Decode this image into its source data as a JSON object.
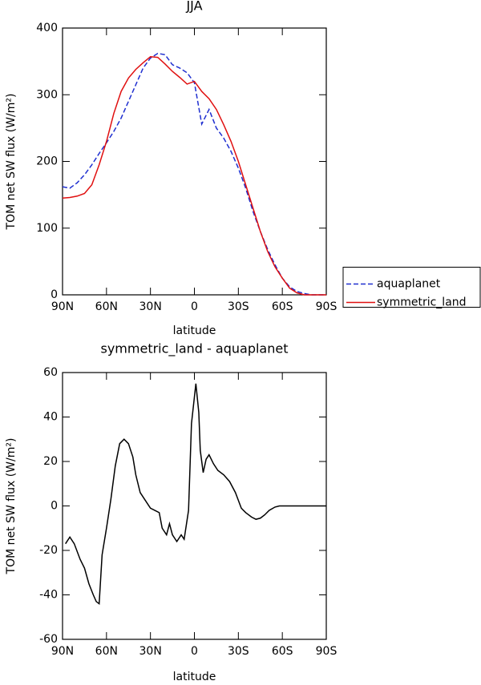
{
  "chart_data": [
    {
      "type": "line",
      "title": "JJA",
      "xlabel": "latitude",
      "ylabel": "TOM net SW flux (W/m²)",
      "x": [
        90,
        85,
        80,
        75,
        70,
        65,
        60,
        55,
        50,
        45,
        40,
        35,
        30,
        25,
        20,
        15,
        10,
        5,
        0,
        -5,
        -10,
        -15,
        -20,
        -25,
        -30,
        -35,
        -40,
        -45,
        -50,
        -55,
        -60,
        -65,
        -70,
        -75,
        -80,
        -85,
        -90
      ],
      "series": [
        {
          "name": "aquaplanet",
          "color": "#1f2fd0",
          "dashed": true,
          "values": [
            162,
            160,
            168,
            180,
            195,
            212,
            228,
            245,
            265,
            290,
            315,
            340,
            355,
            362,
            360,
            345,
            340,
            333,
            318,
            256,
            278,
            250,
            235,
            215,
            190,
            160,
            125,
            95,
            68,
            45,
            25,
            12,
            5,
            2,
            0,
            0,
            0
          ]
        },
        {
          "name": "symmetric_land",
          "color": "#e01010",
          "dashed": false,
          "values": [
            145,
            146,
            148,
            152,
            165,
            195,
            230,
            272,
            305,
            325,
            338,
            348,
            357,
            356,
            346,
            335,
            326,
            316,
            320,
            305,
            294,
            278,
            255,
            230,
            200,
            165,
            130,
            95,
            65,
            42,
            25,
            10,
            3,
            0,
            0,
            0,
            0
          ]
        }
      ],
      "xlim": [
        90,
        -90
      ],
      "xticks": [
        {
          "value": 90,
          "label": "90N"
        },
        {
          "value": 60,
          "label": "60N"
        },
        {
          "value": 30,
          "label": "30N"
        },
        0,
        {
          "value": -30,
          "label": "30S"
        },
        {
          "value": -60,
          "label": "60S"
        },
        {
          "value": -90,
          "label": "90S"
        }
      ],
      "ylim": [
        0,
        400
      ],
      "yticks": [
        0,
        100,
        200,
        300,
        400
      ],
      "legend": "right"
    },
    {
      "type": "line",
      "title": "symmetric_land - aquaplanet",
      "xlabel": "latitude",
      "ylabel": "TOM net SW flux (W/m²)",
      "x": [
        88,
        85,
        82,
        78,
        75,
        72,
        69,
        67,
        65,
        63,
        60,
        57,
        54,
        51,
        48,
        45,
        42,
        40,
        37,
        34,
        30,
        27,
        24,
        22,
        19,
        17,
        15,
        12,
        9,
        7,
        4,
        2,
        -1,
        -3,
        -4,
        -6,
        -8,
        -10,
        -13,
        -16,
        -20,
        -24,
        -28,
        -32,
        -35,
        -39,
        -42,
        -45,
        -48,
        -51,
        -55,
        -58,
        -65,
        -70,
        -75,
        -80,
        -85,
        -90
      ],
      "values": [
        -17,
        -14,
        -17,
        -24,
        -28,
        -35,
        -40,
        -43,
        -44,
        -22,
        -10,
        3,
        18,
        28,
        30,
        28,
        22,
        14,
        6,
        3,
        -1,
        -2,
        -3,
        -10,
        -13,
        -8,
        -13,
        -16,
        -13,
        -15,
        -2,
        37,
        55,
        42,
        25,
        15,
        21,
        23,
        19,
        16,
        14,
        11,
        6,
        -1,
        -3,
        -5,
        -6,
        -5.5,
        -4,
        -2,
        -0.5,
        0,
        0,
        0,
        0,
        0,
        0,
        0
      ],
      "color": "#000000",
      "xlim": [
        90,
        -90
      ],
      "xticks": [
        {
          "value": 90,
          "label": "90N"
        },
        {
          "value": 60,
          "label": "60N"
        },
        {
          "value": 30,
          "label": "30N"
        },
        0,
        {
          "value": -30,
          "label": "30S"
        },
        {
          "value": -60,
          "label": "60S"
        },
        {
          "value": -90,
          "label": "90S"
        }
      ],
      "ylim": [
        -60,
        60
      ],
      "yticks": [
        -60,
        -40,
        -20,
        0,
        20,
        40,
        60
      ]
    }
  ]
}
